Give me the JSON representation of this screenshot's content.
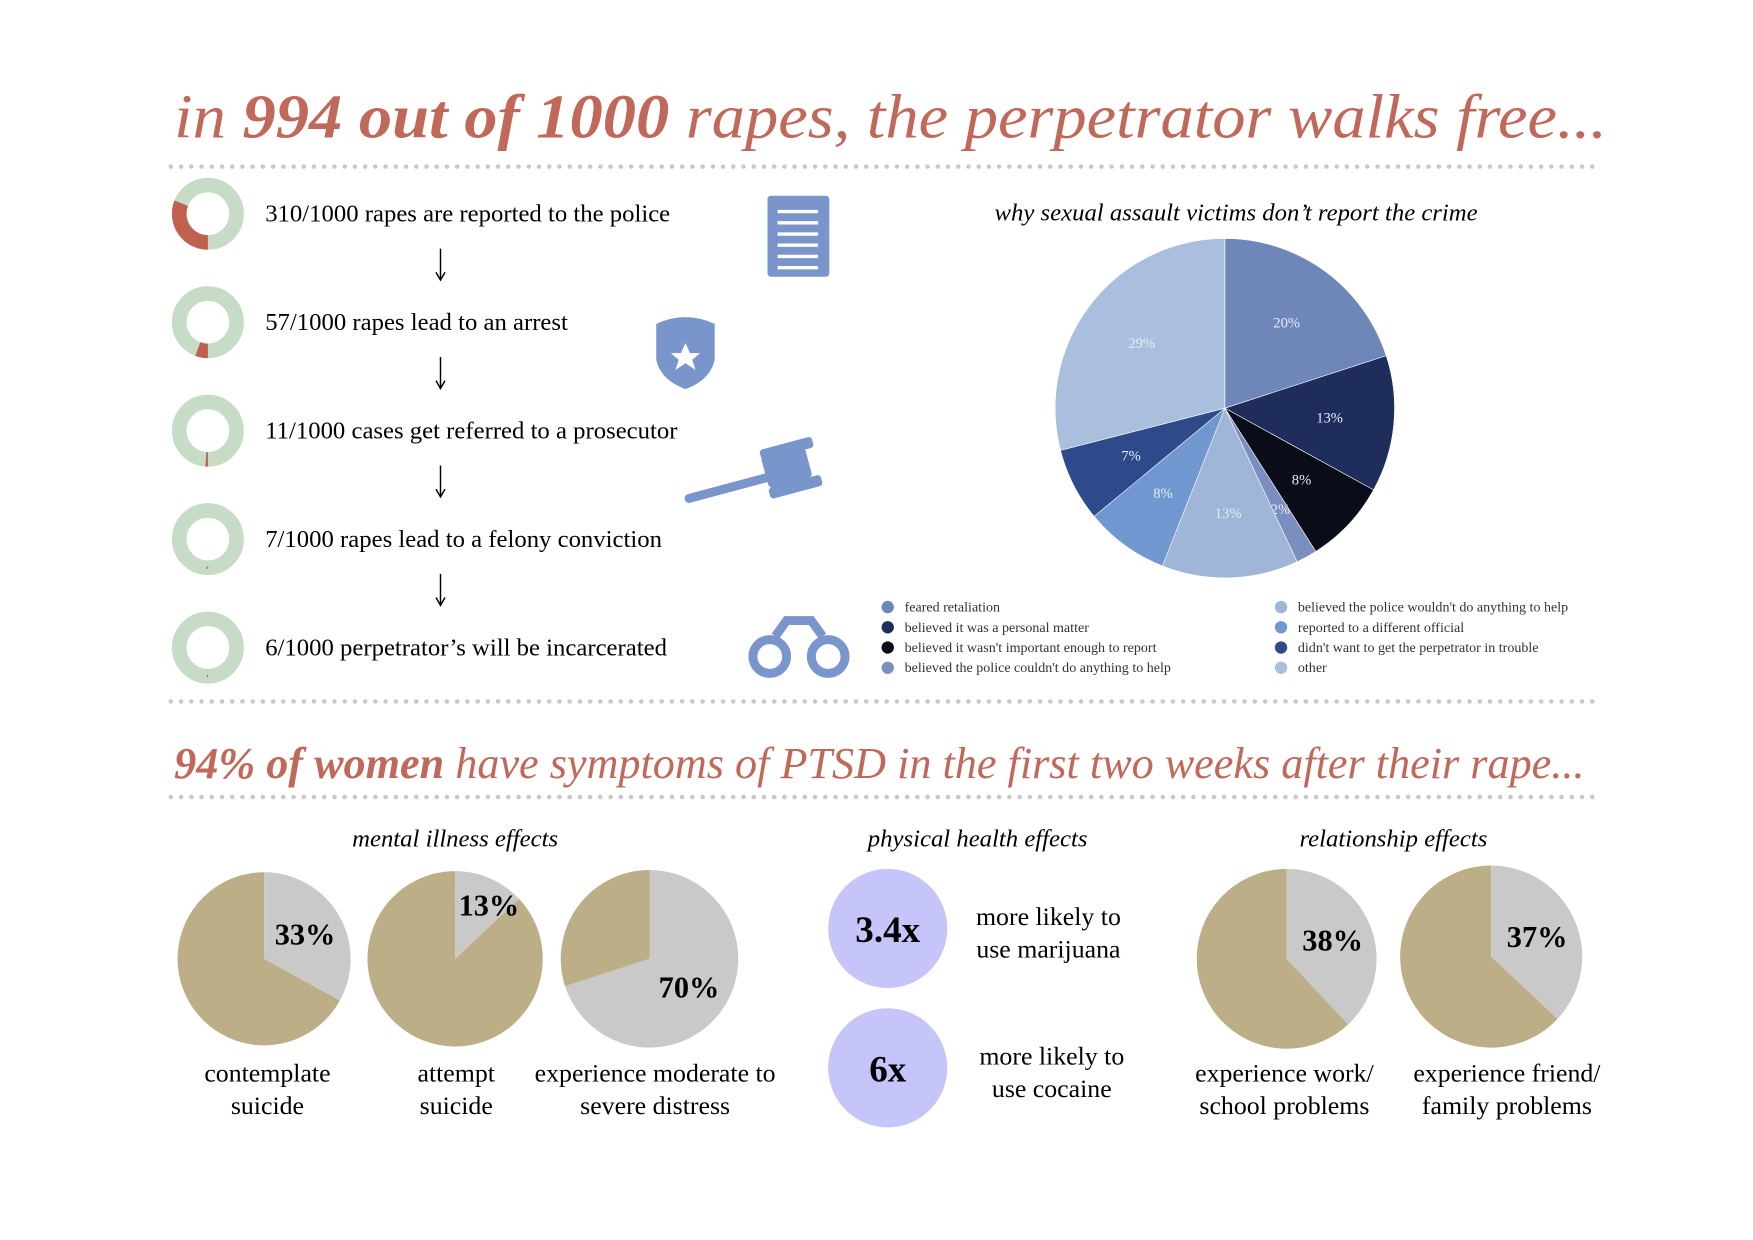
{
  "header": {
    "parts": [
      {
        "text": "in ",
        "bold": false
      },
      {
        "text": "994 out of 1000",
        "bold": true
      },
      {
        "text": " rapes, the perpetrator walks free...",
        "bold": false
      }
    ]
  },
  "steps": [
    {
      "text": "310/1000 rapes are reported to the police",
      "count": 310,
      "total": 1000
    },
    {
      "text": "57/1000 rapes lead to an arrest",
      "count": 57,
      "total": 1000
    },
    {
      "text": "11/1000 cases get referred to a prosecutor",
      "count": 11,
      "total": 1000
    },
    {
      "text": "7/1000 rapes lead to a felony conviction",
      "count": 7,
      "total": 1000
    },
    {
      "text": "6/1000 perpetrator’s will be incarcerated",
      "count": 6,
      "total": 1000
    }
  ],
  "step_colors": {
    "ring": "#c6dcc6",
    "share": "#c0604f"
  },
  "chart_data": {
    "type": "pie",
    "title": "why sexual assault victims don’t report the crime",
    "categories": [
      "feared retaliation",
      "believed it was a personal matter",
      "believed it wasn't important enough to report",
      "believed the police couldn't do anything to help",
      "believed the police wouldn't do anything to help",
      "reported to a different official",
      "didn't want to get the perpetrator in trouble",
      "other"
    ],
    "values": [
      20,
      13,
      8,
      2,
      13,
      8,
      7,
      29
    ],
    "value_labels": [
      "20%",
      "13%",
      "8%",
      "2%",
      "13%",
      "8%",
      "7%",
      "29%"
    ],
    "colors": [
      "#6f87b8",
      "#1f2d5c",
      "#0a0d18",
      "#7a8fc0",
      "#9fb6d8",
      "#7097d0",
      "#2e4a8a",
      "#a9bfdd"
    ]
  },
  "section2": {
    "parts": [
      {
        "text": "94% of women",
        "bold": true
      },
      {
        "text": " have symptoms of PTSD in the first two weeks after their rape...",
        "bold": false
      }
    ]
  },
  "pie_colors": {
    "share": "#c9c9c9",
    "rest": "#bcae86"
  },
  "mental": {
    "title": "mental illness effects",
    "items": [
      {
        "value": 33,
        "value_label": "33%",
        "lines": [
          "contemplate",
          "suicide"
        ]
      },
      {
        "value": 13,
        "value_label": "13%",
        "lines": [
          "attempt",
          "suicide"
        ]
      },
      {
        "value": 70,
        "value_label": "70%",
        "lines": [
          "experience moderate to",
          "severe distress"
        ]
      }
    ]
  },
  "physical": {
    "title": "physical health effects",
    "items": [
      {
        "factor": "3.4x",
        "lines": [
          "more likely to",
          "use marijuana"
        ]
      },
      {
        "factor": "6x",
        "lines": [
          "more likely to",
          "use cocaine"
        ]
      }
    ]
  },
  "relationship": {
    "title": "relationship effects",
    "items": [
      {
        "value": 38,
        "value_label": "38%",
        "lines": [
          "experience work/",
          "school problems"
        ]
      },
      {
        "value": 37,
        "value_label": "37%",
        "lines": [
          "experience friend/",
          "family problems"
        ]
      }
    ]
  }
}
